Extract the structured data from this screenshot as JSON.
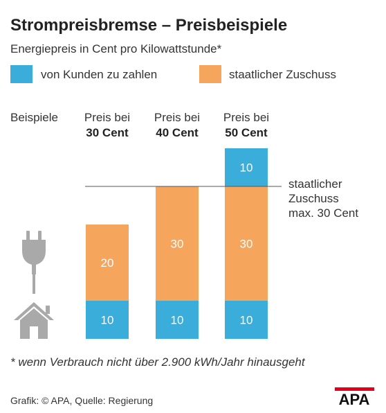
{
  "colors": {
    "customer": "#3aaddb",
    "subsidy": "#f5a55c",
    "text": "#222222",
    "icon": "#a9a9a9",
    "line": "#555555",
    "logo_red": "#e2001a"
  },
  "chart_data": {
    "type": "bar",
    "stacked": true,
    "title": "Strompreisbremse – Preisbeispiele",
    "subtitle": "Energiepreis in Cent pro Kilowattstunde*",
    "row_label": "Beispiele",
    "categories": [
      {
        "line1": "Preis bei",
        "line2": "30 Cent"
      },
      {
        "line1": "Preis bei",
        "line2": "40 Cent"
      },
      {
        "line1": "Preis bei",
        "line2": "50 Cent"
      }
    ],
    "legend": {
      "customer": "von Kunden zu zahlen",
      "subsidy": "staatlicher Zuschuss"
    },
    "segments": [
      {
        "customer_bottom": 10,
        "subsidy": 20,
        "customer_top": 0
      },
      {
        "customer_bottom": 10,
        "subsidy": 30,
        "customer_top": 0
      },
      {
        "customer_bottom": 10,
        "subsidy": 30,
        "customer_top": 10
      }
    ],
    "reference_line": {
      "value": 40,
      "label_lines": [
        "staatlicher",
        "Zuschuss",
        "max. 30 Cent"
      ]
    },
    "ylim": [
      0,
      50
    ],
    "footnote": "* wenn Verbrauch nicht über 2.900 kWh/Jahr hinausgeht",
    "source": "Grafik: © APA, Quelle: Regierung",
    "logo": "APA",
    "icons": [
      "power-plug-icon",
      "house-icon"
    ]
  }
}
